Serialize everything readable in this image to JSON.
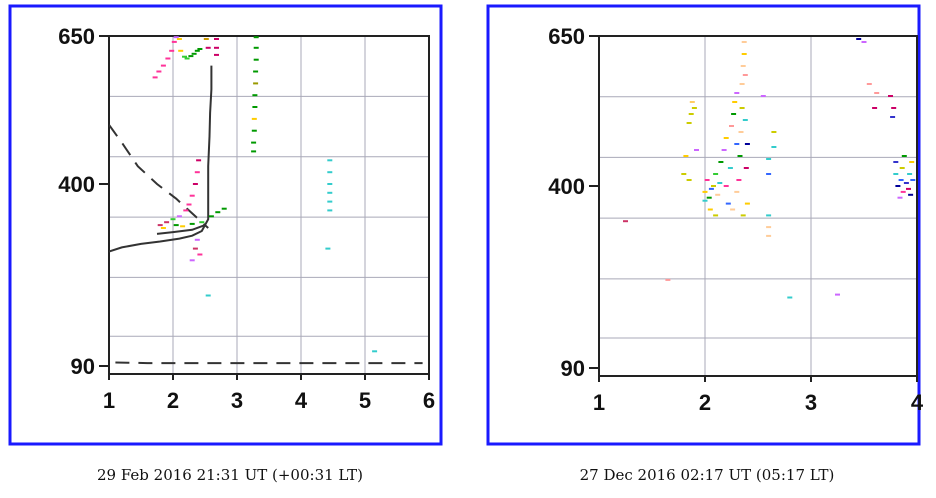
{
  "chart_data": [
    {
      "type": "scatter",
      "caption": "29 Feb 2016 21:31 UT (+00:31 LT)",
      "xlim": [
        1,
        6
      ],
      "ylim": [
        90,
        650
      ],
      "x_ticks": [
        "1",
        "2",
        "3",
        "4",
        "5",
        "6"
      ],
      "y_tick_labels": [
        "650",
        "400",
        "90"
      ],
      "grid": true,
      "frame_color": "#1a1aff",
      "curves": [
        {
          "style": "solid",
          "color": "#333333",
          "points": [
            [
              1.0,
              285
            ],
            [
              1.2,
              292
            ],
            [
              1.5,
              298
            ],
            [
              1.8,
              302
            ],
            [
              2.1,
              307
            ],
            [
              2.3,
              312
            ],
            [
              2.45,
              320
            ],
            [
              2.55,
              340
            ],
            [
              2.55,
              390
            ],
            [
              2.55,
              430
            ],
            [
              2.57,
              480
            ],
            [
              2.58,
              520
            ],
            [
              2.6,
              560
            ],
            [
              2.6,
              600
            ]
          ]
        },
        {
          "style": "dashed",
          "color": "#333333",
          "points": [
            [
              1.0,
              500
            ],
            [
              1.2,
              470
            ],
            [
              1.45,
              430
            ],
            [
              1.75,
              400
            ],
            [
              2.05,
              375
            ],
            [
              2.3,
              350
            ],
            [
              2.45,
              335
            ],
            [
              2.55,
              325
            ]
          ]
        },
        {
          "style": "dashed",
          "color": "#333333",
          "points": [
            [
              1.1,
              96
            ],
            [
              1.6,
              95
            ],
            [
              2.2,
              95
            ],
            [
              3.0,
              95
            ],
            [
              3.8,
              95
            ],
            [
              4.5,
              95
            ],
            [
              5.2,
              95
            ],
            [
              5.9,
              95
            ]
          ]
        },
        {
          "style": "solid",
          "color": "#333333",
          "points": [
            [
              1.75,
              315
            ],
            [
              2.0,
              318
            ],
            [
              2.3,
              322
            ],
            [
              2.5,
              330
            ]
          ]
        }
      ],
      "points": [
        {
          "x": 1.72,
          "y": 580,
          "color": "#ff3399"
        },
        {
          "x": 1.78,
          "y": 590,
          "color": "#ff3399"
        },
        {
          "x": 1.85,
          "y": 600,
          "color": "#ff3399"
        },
        {
          "x": 1.92,
          "y": 612,
          "color": "#ff3399"
        },
        {
          "x": 1.98,
          "y": 625,
          "color": "#ff3399"
        },
        {
          "x": 2.02,
          "y": 640,
          "color": "#ff3399"
        },
        {
          "x": 2.05,
          "y": 648,
          "color": "#cc66ff"
        },
        {
          "x": 2.1,
          "y": 645,
          "color": "#ffcc00"
        },
        {
          "x": 2.12,
          "y": 625,
          "color": "#ffcc00"
        },
        {
          "x": 2.18,
          "y": 615,
          "color": "#33cc33"
        },
        {
          "x": 2.22,
          "y": 612,
          "color": "#33cc33"
        },
        {
          "x": 2.28,
          "y": 616,
          "color": "#009900"
        },
        {
          "x": 2.33,
          "y": 620,
          "color": "#009900"
        },
        {
          "x": 2.38,
          "y": 625,
          "color": "#009900"
        },
        {
          "x": 2.42,
          "y": 628,
          "color": "#009900"
        },
        {
          "x": 2.52,
          "y": 645,
          "color": "#cc9900"
        },
        {
          "x": 2.55,
          "y": 630,
          "color": "#cc0066"
        },
        {
          "x": 2.68,
          "y": 645,
          "color": "#cc0066"
        },
        {
          "x": 2.68,
          "y": 630,
          "color": "#cc0066"
        },
        {
          "x": 2.68,
          "y": 618,
          "color": "#cc0066"
        },
        {
          "x": 3.3,
          "y": 648,
          "color": "#009900"
        },
        {
          "x": 3.3,
          "y": 630,
          "color": "#009900"
        },
        {
          "x": 3.3,
          "y": 610,
          "color": "#009900"
        },
        {
          "x": 3.29,
          "y": 590,
          "color": "#009900"
        },
        {
          "x": 3.29,
          "y": 570,
          "color": "#999900"
        },
        {
          "x": 3.28,
          "y": 550,
          "color": "#009900"
        },
        {
          "x": 3.28,
          "y": 530,
          "color": "#009900"
        },
        {
          "x": 3.27,
          "y": 510,
          "color": "#ffcc00"
        },
        {
          "x": 3.27,
          "y": 490,
          "color": "#009900"
        },
        {
          "x": 3.26,
          "y": 470,
          "color": "#009900"
        },
        {
          "x": 3.26,
          "y": 455,
          "color": "#009900"
        },
        {
          "x": 1.8,
          "y": 330,
          "color": "#cc3366"
        },
        {
          "x": 1.9,
          "y": 335,
          "color": "#cc3366"
        },
        {
          "x": 2.0,
          "y": 340,
          "color": "#33cc33"
        },
        {
          "x": 2.1,
          "y": 345,
          "color": "#cc66ff"
        },
        {
          "x": 2.2,
          "y": 355,
          "color": "#ff3399"
        },
        {
          "x": 2.25,
          "y": 365,
          "color": "#ff3399"
        },
        {
          "x": 2.3,
          "y": 380,
          "color": "#ff3399"
        },
        {
          "x": 2.35,
          "y": 400,
          "color": "#cc0066"
        },
        {
          "x": 2.38,
          "y": 420,
          "color": "#ff3399"
        },
        {
          "x": 2.4,
          "y": 440,
          "color": "#cc0066"
        },
        {
          "x": 1.85,
          "y": 325,
          "color": "#ffcc00"
        },
        {
          "x": 2.05,
          "y": 330,
          "color": "#009900"
        },
        {
          "x": 2.15,
          "y": 328,
          "color": "#ffcc00"
        },
        {
          "x": 2.3,
          "y": 332,
          "color": "#009900"
        },
        {
          "x": 2.45,
          "y": 335,
          "color": "#33cc33"
        },
        {
          "x": 2.6,
          "y": 345,
          "color": "#009900"
        },
        {
          "x": 2.7,
          "y": 352,
          "color": "#009900"
        },
        {
          "x": 2.8,
          "y": 358,
          "color": "#009900"
        },
        {
          "x": 2.38,
          "y": 305,
          "color": "#cc66ff"
        },
        {
          "x": 2.35,
          "y": 290,
          "color": "#cc3366"
        },
        {
          "x": 2.3,
          "y": 270,
          "color": "#cc66ff"
        },
        {
          "x": 2.42,
          "y": 280,
          "color": "#ff3399"
        },
        {
          "x": 2.55,
          "y": 210,
          "color": "#33cccc"
        },
        {
          "x": 4.45,
          "y": 440,
          "color": "#33cccc"
        },
        {
          "x": 4.45,
          "y": 420,
          "color": "#33cccc"
        },
        {
          "x": 4.45,
          "y": 400,
          "color": "#33cccc"
        },
        {
          "x": 4.45,
          "y": 385,
          "color": "#33cccc"
        },
        {
          "x": 4.45,
          "y": 370,
          "color": "#33cccc"
        },
        {
          "x": 4.45,
          "y": 355,
          "color": "#33cccc"
        },
        {
          "x": 4.42,
          "y": 290,
          "color": "#33cccc"
        },
        {
          "x": 5.15,
          "y": 115,
          "color": "#33cccc"
        }
      ]
    },
    {
      "type": "scatter",
      "caption": "27 Dec 2016 02:17 UT (05:17 LT)",
      "xlim": [
        1,
        4
      ],
      "ylim": [
        90,
        650
      ],
      "x_ticks": [
        "1",
        "2",
        "3",
        "4"
      ],
      "y_tick_labels": [
        "650",
        "400",
        "90"
      ],
      "grid": true,
      "frame_color": "#1a1aff",
      "points": [
        {
          "x": 1.25,
          "y": 340,
          "color": "#cc3366"
        },
        {
          "x": 1.65,
          "y": 240,
          "color": "#ff9999"
        },
        {
          "x": 1.8,
          "y": 420,
          "color": "#cccc00"
        },
        {
          "x": 1.82,
          "y": 450,
          "color": "#ffcc00"
        },
        {
          "x": 1.85,
          "y": 410,
          "color": "#cccc00"
        },
        {
          "x": 1.85,
          "y": 505,
          "color": "#cccc00"
        },
        {
          "x": 1.87,
          "y": 520,
          "color": "#cccc00"
        },
        {
          "x": 1.88,
          "y": 540,
          "color": "#ffcc66"
        },
        {
          "x": 1.9,
          "y": 530,
          "color": "#cccc00"
        },
        {
          "x": 1.92,
          "y": 460,
          "color": "#cc66ff"
        },
        {
          "x": 2.0,
          "y": 375,
          "color": "#33cccc"
        },
        {
          "x": 2.0,
          "y": 390,
          "color": "#ffcc00"
        },
        {
          "x": 2.02,
          "y": 410,
          "color": "#ff3399"
        },
        {
          "x": 2.04,
          "y": 380,
          "color": "#009900"
        },
        {
          "x": 2.06,
          "y": 395,
          "color": "#3366ff"
        },
        {
          "x": 2.08,
          "y": 400,
          "color": "#cccc00"
        },
        {
          "x": 2.1,
          "y": 420,
          "color": "#33cc33"
        },
        {
          "x": 2.12,
          "y": 385,
          "color": "#ffcc99"
        },
        {
          "x": 2.14,
          "y": 405,
          "color": "#33cccc"
        },
        {
          "x": 2.05,
          "y": 360,
          "color": "#ffcc00"
        },
        {
          "x": 2.1,
          "y": 350,
          "color": "#cccc00"
        },
        {
          "x": 2.15,
          "y": 440,
          "color": "#009900"
        },
        {
          "x": 2.18,
          "y": 460,
          "color": "#cc66ff"
        },
        {
          "x": 2.2,
          "y": 480,
          "color": "#ffcc00"
        },
        {
          "x": 2.2,
          "y": 400,
          "color": "#ff3399"
        },
        {
          "x": 2.22,
          "y": 370,
          "color": "#3366ff"
        },
        {
          "x": 2.24,
          "y": 430,
          "color": "#33cccc"
        },
        {
          "x": 2.25,
          "y": 500,
          "color": "#ff9999"
        },
        {
          "x": 2.27,
          "y": 520,
          "color": "#009900"
        },
        {
          "x": 2.28,
          "y": 540,
          "color": "#ffcc00"
        },
        {
          "x": 2.3,
          "y": 555,
          "color": "#cc66ff"
        },
        {
          "x": 2.3,
          "y": 470,
          "color": "#3366ff"
        },
        {
          "x": 2.3,
          "y": 390,
          "color": "#ffcc99"
        },
        {
          "x": 2.32,
          "y": 410,
          "color": "#ff3399"
        },
        {
          "x": 2.33,
          "y": 450,
          "color": "#009900"
        },
        {
          "x": 2.34,
          "y": 490,
          "color": "#ffcc99"
        },
        {
          "x": 2.35,
          "y": 530,
          "color": "#cccc00"
        },
        {
          "x": 2.35,
          "y": 570,
          "color": "#ffcc99"
        },
        {
          "x": 2.36,
          "y": 600,
          "color": "#ffcc99"
        },
        {
          "x": 2.37,
          "y": 620,
          "color": "#ffcc00"
        },
        {
          "x": 2.37,
          "y": 640,
          "color": "#ffcc99"
        },
        {
          "x": 2.38,
          "y": 585,
          "color": "#ff9999"
        },
        {
          "x": 2.38,
          "y": 510,
          "color": "#33cccc"
        },
        {
          "x": 2.39,
          "y": 430,
          "color": "#cc0066"
        },
        {
          "x": 2.4,
          "y": 370,
          "color": "#ffcc00"
        },
        {
          "x": 2.4,
          "y": 470,
          "color": "#000099"
        },
        {
          "x": 2.26,
          "y": 360,
          "color": "#ffcc99"
        },
        {
          "x": 2.36,
          "y": 350,
          "color": "#cccc00"
        },
        {
          "x": 2.55,
          "y": 550,
          "color": "#cc66ff"
        },
        {
          "x": 2.6,
          "y": 445,
          "color": "#33cccc"
        },
        {
          "x": 2.6,
          "y": 420,
          "color": "#3366ff"
        },
        {
          "x": 2.6,
          "y": 350,
          "color": "#33cccc"
        },
        {
          "x": 2.6,
          "y": 330,
          "color": "#ffcc99"
        },
        {
          "x": 2.6,
          "y": 315,
          "color": "#ffcc99"
        },
        {
          "x": 2.65,
          "y": 490,
          "color": "#cccc00"
        },
        {
          "x": 2.65,
          "y": 465,
          "color": "#33cccc"
        },
        {
          "x": 2.8,
          "y": 210,
          "color": "#33cccc"
        },
        {
          "x": 3.25,
          "y": 215,
          "color": "#cc66ff"
        },
        {
          "x": 3.45,
          "y": 645,
          "color": "#000099"
        },
        {
          "x": 3.5,
          "y": 640,
          "color": "#cc66ff"
        },
        {
          "x": 3.55,
          "y": 570,
          "color": "#ff9999"
        },
        {
          "x": 3.6,
          "y": 530,
          "color": "#cc0066"
        },
        {
          "x": 3.62,
          "y": 555,
          "color": "#ff9999"
        },
        {
          "x": 3.75,
          "y": 550,
          "color": "#cc0066"
        },
        {
          "x": 3.77,
          "y": 515,
          "color": "#3333cc"
        },
        {
          "x": 3.78,
          "y": 530,
          "color": "#cc0066"
        },
        {
          "x": 3.8,
          "y": 440,
          "color": "#3333cc"
        },
        {
          "x": 3.8,
          "y": 420,
          "color": "#33cccc"
        },
        {
          "x": 3.82,
          "y": 400,
          "color": "#000099"
        },
        {
          "x": 3.84,
          "y": 380,
          "color": "#cc66ff"
        },
        {
          "x": 3.85,
          "y": 410,
          "color": "#3366ff"
        },
        {
          "x": 3.86,
          "y": 430,
          "color": "#cccc00"
        },
        {
          "x": 3.87,
          "y": 390,
          "color": "#ff3399"
        },
        {
          "x": 3.88,
          "y": 450,
          "color": "#009900"
        },
        {
          "x": 3.9,
          "y": 405,
          "color": "#3333cc"
        },
        {
          "x": 3.92,
          "y": 395,
          "color": "#cc0066"
        },
        {
          "x": 3.93,
          "y": 420,
          "color": "#33cccc"
        },
        {
          "x": 3.94,
          "y": 385,
          "color": "#000099"
        },
        {
          "x": 3.95,
          "y": 440,
          "color": "#ffcc00"
        },
        {
          "x": 3.96,
          "y": 410,
          "color": "#3366ff"
        }
      ]
    }
  ]
}
